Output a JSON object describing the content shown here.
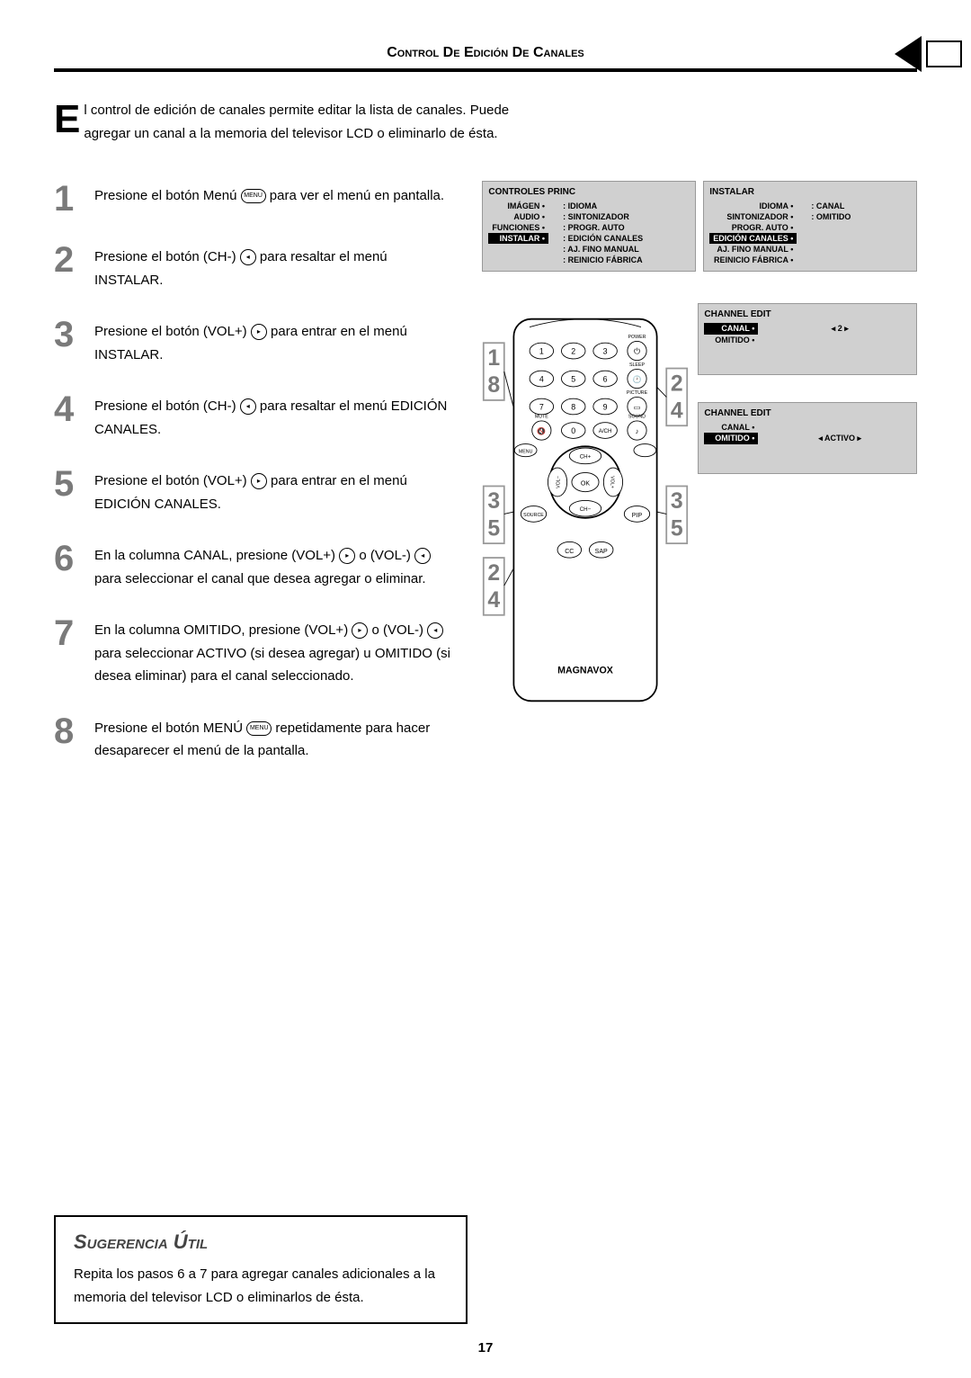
{
  "header": "Control De Edición De Canales",
  "intro": "El control de edición de canales permite editar la lista de canales. Puede agregar un canal a la memoria del televisor LCD o eliminarlo de ésta.",
  "steps": [
    {
      "num": "1",
      "text_parts": [
        "Presione el botón Menú ",
        " para ver el menú en pantalla."
      ],
      "icon_label": "MENU",
      "icon_type": "pill"
    },
    {
      "num": "2",
      "text_parts": [
        "Presione el botón (CH-) ",
        " para resaltar el menú INSTALAR."
      ],
      "icon_label": "CH-",
      "icon_type": "round"
    },
    {
      "num": "3",
      "text_parts": [
        "Presione el botón (VOL+) ",
        " para entrar en el menú INSTALAR."
      ],
      "icon_label": "VOL+",
      "icon_type": "round"
    },
    {
      "num": "4",
      "text_parts": [
        "Presione el botón (CH-) ",
        " para resaltar el menú EDICIÓN CANALES."
      ],
      "icon_label": "CH-",
      "icon_type": "round"
    },
    {
      "num": "5",
      "text_parts": [
        "Presione el botón (VOL+) ",
        " para entrar en el menú EDICIÓN CANALES."
      ],
      "icon_label": "VOL+",
      "icon_type": "round"
    },
    {
      "num": "6",
      "text_parts": [
        "En la columna CANAL, presione (VOL+) ",
        " o (VOL-) ",
        " para seleccionar el canal que desea agregar o eliminar."
      ],
      "icon_label": "VOL+",
      "icon_label2": "VOL-",
      "icon_type": "round"
    },
    {
      "num": "7",
      "text_parts": [
        "En la columna OMITIDO, presione (VOL+) ",
        " o (VOL-) ",
        " para seleccionar ACTIVO (si desea agregar) u OMITIDO (si desea eliminar) para el canal seleccionado."
      ],
      "icon_label": "VOL+",
      "icon_label2": "VOL-",
      "icon_type": "round"
    },
    {
      "num": "8",
      "text_parts": [
        "Presione el botón MENÚ ",
        " repetidamente para hacer desaparecer el menú de la pantalla."
      ],
      "icon_label": "MENU",
      "icon_type": "pill"
    }
  ],
  "menuA": {
    "title": "CONTROLES PRINC",
    "left": [
      "IMÁGEN",
      "AUDIO",
      "FUNCIONES",
      "INSTALAR"
    ],
    "right": [
      "IDIOMA",
      "SINTONIZADOR",
      "PROGR. AUTO",
      "EDICIÓN CANALES",
      "AJ. FINO MANUAL",
      "REINICIO FÁBRICA"
    ],
    "hilite_left_idx": 3
  },
  "menuB": {
    "title": "INSTALAR",
    "left": [
      "IDIOMA",
      "SINTONIZADOR",
      "PROGR. AUTO",
      "EDICIÓN CANALES",
      "AJ. FINO MANUAL",
      "REINICIO FÁBRICA"
    ],
    "right": [
      "CANAL",
      "OMITIDO"
    ],
    "hilite_left_idx": 3
  },
  "menuC": {
    "title": "CHANNEL EDIT",
    "rows": [
      {
        "label": "CANAL",
        "value": "2",
        "hilite": true,
        "arrows": true
      },
      {
        "label": "OMITIDO",
        "value": "",
        "hilite": false
      }
    ]
  },
  "menuD": {
    "title": "CHANNEL EDIT",
    "rows": [
      {
        "label": "CANAL",
        "value": "",
        "hilite": false
      },
      {
        "label": "OMITIDO",
        "value": "ACTIVO",
        "hilite": true,
        "arrows": true
      }
    ]
  },
  "remote": {
    "brand": "MAGNAVOX",
    "labels": {
      "power": "POWER",
      "sleep": "SLEEP",
      "picture": "PICTURE",
      "sound": "SOUND",
      "mute": "MUTE",
      "menu": "MENU",
      "source": "SOURCE",
      "pip": "PIP",
      "cc": "CC",
      "sap": "SAP",
      "ach": "A/CH",
      "ok": "OK",
      "chp": "CH+",
      "chm": "CH−",
      "volp": "VOL+",
      "volm": "VOL−"
    },
    "callouts_left": [
      "1",
      "8",
      "3",
      "5",
      "2",
      "4"
    ],
    "callouts_right": [
      "2",
      "4",
      "3",
      "5"
    ]
  },
  "tip": {
    "title": "Sugerencia Útil",
    "text": "Repita los pasos 6 a 7 para agregar canales adicionales a la memoria del televisor LCD o eliminarlos de ésta."
  },
  "pageNumber": "17",
  "colors": {
    "stepNum": "#7a7a7a",
    "menuBg": "#d0d0d0"
  }
}
